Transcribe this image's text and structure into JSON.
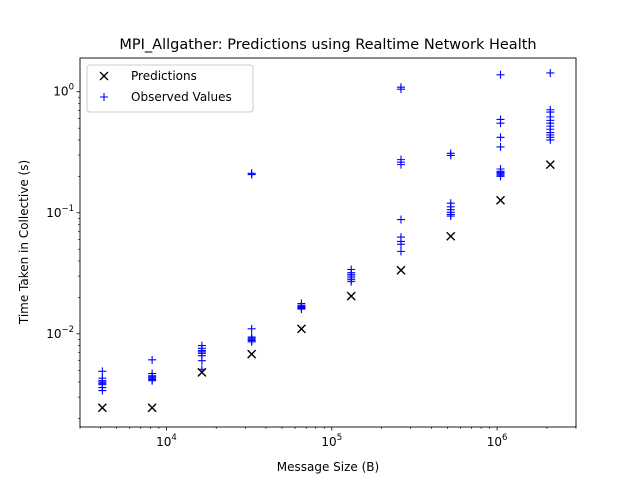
{
  "chart_data": {
    "type": "scatter",
    "title": "MPI_Allgather: Predictions using Realtime Network Health",
    "xlabel": "Message Size (B)",
    "ylabel": "Time Taken in Collective (s)",
    "xscale": "log",
    "yscale": "log",
    "xlim": [
      3000,
      3000000
    ],
    "ylim": [
      0.0017,
      1.9
    ],
    "grid": false,
    "legend_position": "top-left",
    "x_ticks": [
      {
        "value": 10000,
        "base": "10",
        "exp": "4"
      },
      {
        "value": 100000,
        "base": "10",
        "exp": "5"
      },
      {
        "value": 1000000,
        "base": "10",
        "exp": "6"
      }
    ],
    "y_ticks": [
      {
        "value": 0.01,
        "base": "10",
        "exp": "−2"
      },
      {
        "value": 0.1,
        "base": "10",
        "exp": "−1"
      },
      {
        "value": 1,
        "base": "10",
        "exp": "0"
      }
    ],
    "series": [
      {
        "name": "Predictions",
        "marker": "x",
        "color": "#000000",
        "points": [
          [
            4096,
            0.00245
          ],
          [
            8192,
            0.00245
          ],
          [
            16384,
            0.0048
          ],
          [
            32768,
            0.0068
          ],
          [
            65536,
            0.011
          ],
          [
            131072,
            0.0205
          ],
          [
            262144,
            0.0335
          ],
          [
            524288,
            0.064
          ],
          [
            1048576,
            0.127
          ],
          [
            2097152,
            0.25
          ]
        ]
      },
      {
        "name": "Observed Values",
        "marker": "+",
        "color": "#0000ff",
        "points": [
          [
            4096,
            0.0049
          ],
          [
            4096,
            0.0043
          ],
          [
            4096,
            0.0041
          ],
          [
            4096,
            0.004
          ],
          [
            4096,
            0.0039
          ],
          [
            4096,
            0.0038
          ],
          [
            4096,
            0.0036
          ],
          [
            4096,
            0.0034
          ],
          [
            8192,
            0.0061
          ],
          [
            8192,
            0.0047
          ],
          [
            8192,
            0.0045
          ],
          [
            8192,
            0.0044
          ],
          [
            8192,
            0.0043
          ],
          [
            8192,
            0.0042
          ],
          [
            8192,
            0.0041
          ],
          [
            16384,
            0.008
          ],
          [
            16384,
            0.0076
          ],
          [
            16384,
            0.0073
          ],
          [
            16384,
            0.0071
          ],
          [
            16384,
            0.0069
          ],
          [
            16384,
            0.0066
          ],
          [
            16384,
            0.006
          ],
          [
            16384,
            0.0051
          ],
          [
            32768,
            0.212
          ],
          [
            32768,
            0.207
          ],
          [
            32768,
            0.011
          ],
          [
            32768,
            0.0094
          ],
          [
            32768,
            0.0092
          ],
          [
            32768,
            0.009
          ],
          [
            32768,
            0.0088
          ],
          [
            32768,
            0.0086
          ],
          [
            65536,
            0.0178
          ],
          [
            65536,
            0.0172
          ],
          [
            65536,
            0.0168
          ],
          [
            65536,
            0.0165
          ],
          [
            65536,
            0.0162
          ],
          [
            65536,
            0.016
          ],
          [
            131072,
            0.034
          ],
          [
            131072,
            0.032
          ],
          [
            131072,
            0.031
          ],
          [
            131072,
            0.03
          ],
          [
            131072,
            0.029
          ],
          [
            131072,
            0.028
          ],
          [
            131072,
            0.027
          ],
          [
            262144,
            1.09
          ],
          [
            262144,
            1.05
          ],
          [
            262144,
            0.275
          ],
          [
            262144,
            0.262
          ],
          [
            262144,
            0.25
          ],
          [
            262144,
            0.088
          ],
          [
            262144,
            0.063
          ],
          [
            262144,
            0.058
          ],
          [
            262144,
            0.055
          ],
          [
            262144,
            0.048
          ],
          [
            524288,
            0.31
          ],
          [
            524288,
            0.298
          ],
          [
            524288,
            0.12
          ],
          [
            524288,
            0.112
          ],
          [
            524288,
            0.106
          ],
          [
            524288,
            0.101
          ],
          [
            524288,
            0.097
          ],
          [
            524288,
            0.094
          ],
          [
            1048576,
            1.38
          ],
          [
            1048576,
            0.59
          ],
          [
            1048576,
            0.55
          ],
          [
            1048576,
            0.42
          ],
          [
            1048576,
            0.35
          ],
          [
            1048576,
            0.23
          ],
          [
            1048576,
            0.22
          ],
          [
            1048576,
            0.215
          ],
          [
            1048576,
            0.21
          ],
          [
            1048576,
            0.205
          ],
          [
            1048576,
            0.2
          ],
          [
            2097152,
            1.43
          ],
          [
            2097152,
            0.71
          ],
          [
            2097152,
            0.68
          ],
          [
            2097152,
            0.62
          ],
          [
            2097152,
            0.58
          ],
          [
            2097152,
            0.55
          ],
          [
            2097152,
            0.52
          ],
          [
            2097152,
            0.49
          ],
          [
            2097152,
            0.46
          ],
          [
            2097152,
            0.44
          ],
          [
            2097152,
            0.42
          ],
          [
            2097152,
            0.4
          ]
        ]
      }
    ]
  }
}
